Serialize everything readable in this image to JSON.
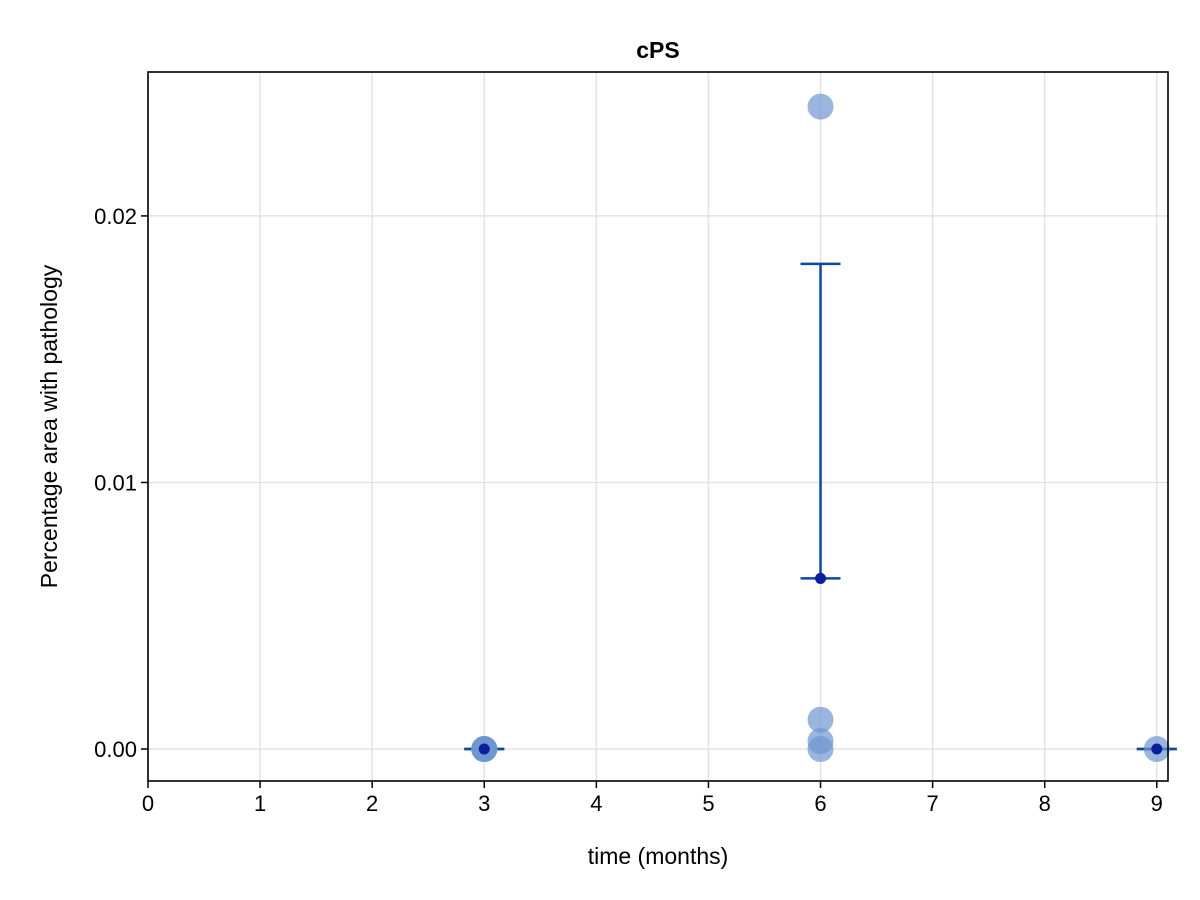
{
  "chart_data": {
    "type": "scatter",
    "title": "cPS",
    "xlabel": "time (months)",
    "ylabel": "Percentage area with pathology",
    "xlim": [
      0,
      9.1
    ],
    "ylim": [
      -0.0012,
      0.0254
    ],
    "xticks": [
      0,
      1,
      2,
      3,
      4,
      5,
      6,
      7,
      8,
      9
    ],
    "yticks": [
      0.0,
      0.01,
      0.02
    ],
    "ytick_labels": [
      "0.00",
      "0.01",
      "0.02"
    ],
    "grid": true,
    "points": [
      {
        "x": 3,
        "y": 0.0
      },
      {
        "x": 3,
        "y": 0.0
      },
      {
        "x": 3,
        "y": 0.0
      },
      {
        "x": 3,
        "y": 0.0
      },
      {
        "x": 6,
        "y": 0.0241
      },
      {
        "x": 6,
        "y": 0.0011
      },
      {
        "x": 6,
        "y": 0.0003
      },
      {
        "x": 6,
        "y": 0.0
      },
      {
        "x": 9,
        "y": 0.0
      }
    ],
    "means": [
      {
        "x": 3,
        "y": 0.0,
        "lower": 0.0,
        "upper": 0.0
      },
      {
        "x": 6,
        "y": 0.0064,
        "lower": 0.0064,
        "upper": 0.0182
      },
      {
        "x": 9,
        "y": 0.0,
        "lower": 0.0,
        "upper": 0.0
      }
    ],
    "colors": {
      "points": "#6f96d0",
      "mean": "#0a1f9c",
      "errorbar": "#0d47a1",
      "grid": "#e3e3e3",
      "axis": "#000000"
    }
  }
}
